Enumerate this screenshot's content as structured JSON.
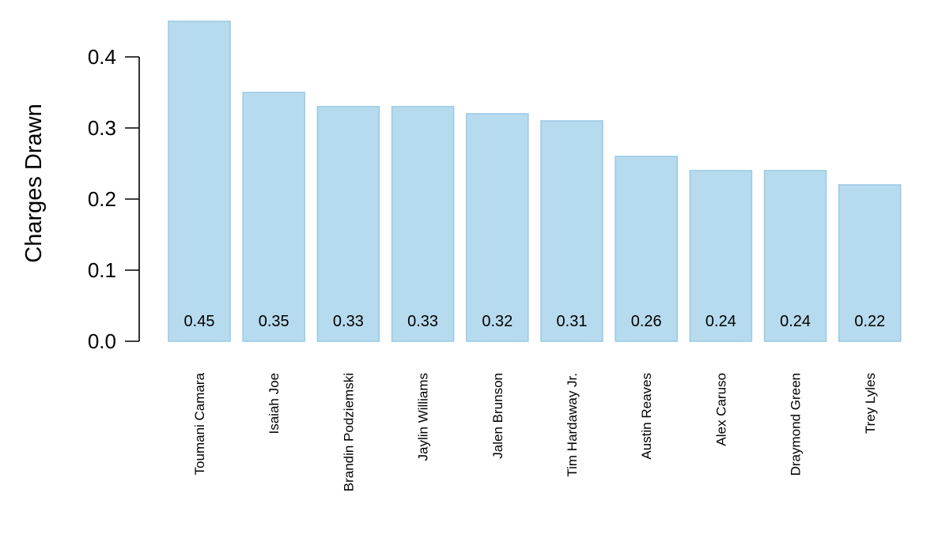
{
  "chart_data": {
    "type": "bar",
    "title": "",
    "xlabel": "",
    "ylabel": "Charges Drawn",
    "ylim": [
      0,
      0.45
    ],
    "yticks": [
      0.0,
      0.1,
      0.2,
      0.3,
      0.4
    ],
    "ytick_labels": [
      "0.0",
      "0.1",
      "0.2",
      "0.3",
      "0.4"
    ],
    "grid": false,
    "categories": [
      "Toumani Camara",
      "Isaiah Joe",
      "Brandin Podziemski",
      "Jaylin Williams",
      "Jalen Brunson",
      "Tim Hardaway Jr.",
      "Austin Reaves",
      "Alex Caruso",
      "Draymond Green",
      "Trey Lyles"
    ],
    "values": [
      0.45,
      0.35,
      0.33,
      0.33,
      0.32,
      0.31,
      0.26,
      0.24,
      0.24,
      0.22
    ],
    "value_labels": [
      "0.45",
      "0.35",
      "0.33",
      "0.33",
      "0.32",
      "0.31",
      "0.26",
      "0.24",
      "0.24",
      "0.22"
    ],
    "colors": {
      "bar_fill": "#b7dbee",
      "bar_stroke": "#9ccbe6",
      "axis": "#000000"
    }
  }
}
